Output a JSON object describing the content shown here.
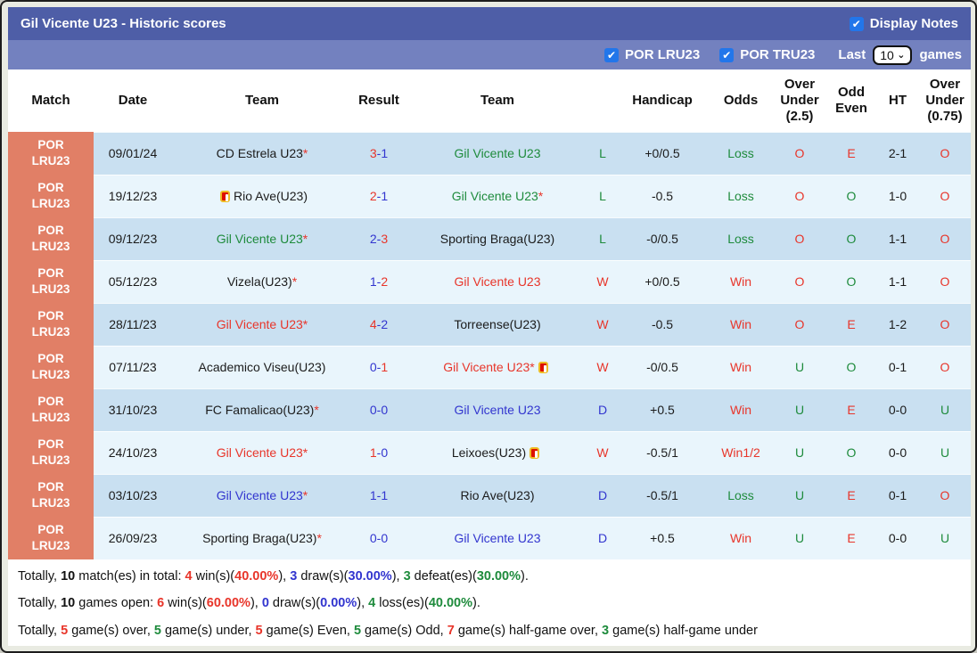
{
  "header": {
    "title": "Gil Vicente U23 - Historic scores",
    "display_notes_label": "Display Notes",
    "filters": [
      {
        "label": "POR LRU23",
        "checked": true
      },
      {
        "label": "POR TRU23",
        "checked": true
      }
    ],
    "last_label": "Last",
    "last_value": "10",
    "games_label": "games"
  },
  "colors": {
    "red": "#e8352a",
    "blue": "#3235cf",
    "green": "#1e8b3c",
    "black": "#1b1b1b"
  },
  "theme": {
    "title_bar": "#4e5ea7",
    "filter_bar": "#7381bf",
    "row_dark": "#c9e0f1",
    "row_light": "#e9f5fc",
    "match_column": "#e17f66",
    "frame_bg": "#e9ebe2"
  },
  "table": {
    "columns": [
      "Match",
      "Date",
      "Team",
      "Result",
      "Team",
      "",
      "Handicap",
      "Odds",
      "Over Under (2.5)",
      "Odd Even",
      "HT",
      "Over Under (0.75)"
    ],
    "rows": [
      {
        "match": "POR\nLRU23",
        "date": "09/01/24",
        "home": {
          "name": "CD Estrela U23",
          "star": true,
          "color": "black",
          "card": null
        },
        "result": {
          "h": "3",
          "hc": "red",
          "a": "1",
          "ac": "blue"
        },
        "away": {
          "name": "Gil Vicente U23",
          "star": false,
          "color": "green",
          "card": null
        },
        "wdl": {
          "t": "L",
          "c": "green"
        },
        "handicap": "+0/0.5",
        "odds": {
          "t": "Loss",
          "c": "green"
        },
        "ou25": {
          "t": "O",
          "c": "red"
        },
        "oe": {
          "t": "E",
          "c": "red"
        },
        "ht": "2-1",
        "ou075": {
          "t": "O",
          "c": "red"
        }
      },
      {
        "match": "POR\nLRU23",
        "date": "19/12/23",
        "home": {
          "name": "Rio Ave(U23)",
          "star": false,
          "color": "black",
          "card": "before"
        },
        "result": {
          "h": "2",
          "hc": "red",
          "a": "1",
          "ac": "blue"
        },
        "away": {
          "name": "Gil Vicente U23",
          "star": true,
          "color": "green",
          "card": null
        },
        "wdl": {
          "t": "L",
          "c": "green"
        },
        "handicap": "-0.5",
        "odds": {
          "t": "Loss",
          "c": "green"
        },
        "ou25": {
          "t": "O",
          "c": "red"
        },
        "oe": {
          "t": "O",
          "c": "green"
        },
        "ht": "1-0",
        "ou075": {
          "t": "O",
          "c": "red"
        }
      },
      {
        "match": "POR\nLRU23",
        "date": "09/12/23",
        "home": {
          "name": "Gil Vicente U23",
          "star": true,
          "color": "green",
          "card": null
        },
        "result": {
          "h": "2",
          "hc": "blue",
          "a": "3",
          "ac": "red"
        },
        "away": {
          "name": "Sporting Braga(U23)",
          "star": false,
          "color": "black",
          "card": null
        },
        "wdl": {
          "t": "L",
          "c": "green"
        },
        "handicap": "-0/0.5",
        "odds": {
          "t": "Loss",
          "c": "green"
        },
        "ou25": {
          "t": "O",
          "c": "red"
        },
        "oe": {
          "t": "O",
          "c": "green"
        },
        "ht": "1-1",
        "ou075": {
          "t": "O",
          "c": "red"
        }
      },
      {
        "match": "POR\nLRU23",
        "date": "05/12/23",
        "home": {
          "name": "Vizela(U23)",
          "star": true,
          "color": "black",
          "card": null
        },
        "result": {
          "h": "1",
          "hc": "blue",
          "a": "2",
          "ac": "red"
        },
        "away": {
          "name": "Gil Vicente U23",
          "star": false,
          "color": "red",
          "card": null
        },
        "wdl": {
          "t": "W",
          "c": "red"
        },
        "handicap": "+0/0.5",
        "odds": {
          "t": "Win",
          "c": "red"
        },
        "ou25": {
          "t": "O",
          "c": "red"
        },
        "oe": {
          "t": "O",
          "c": "green"
        },
        "ht": "1-1",
        "ou075": {
          "t": "O",
          "c": "red"
        }
      },
      {
        "match": "POR\nLRU23",
        "date": "28/11/23",
        "home": {
          "name": "Gil Vicente U23",
          "star": true,
          "color": "red",
          "card": null
        },
        "result": {
          "h": "4",
          "hc": "red",
          "a": "2",
          "ac": "blue"
        },
        "away": {
          "name": "Torreense(U23)",
          "star": false,
          "color": "black",
          "card": null
        },
        "wdl": {
          "t": "W",
          "c": "red"
        },
        "handicap": "-0.5",
        "odds": {
          "t": "Win",
          "c": "red"
        },
        "ou25": {
          "t": "O",
          "c": "red"
        },
        "oe": {
          "t": "E",
          "c": "red"
        },
        "ht": "1-2",
        "ou075": {
          "t": "O",
          "c": "red"
        }
      },
      {
        "match": "POR\nLRU23",
        "date": "07/11/23",
        "home": {
          "name": "Academico Viseu(U23)",
          "star": false,
          "color": "black",
          "card": null
        },
        "result": {
          "h": "0",
          "hc": "blue",
          "a": "1",
          "ac": "red"
        },
        "away": {
          "name": "Gil Vicente U23",
          "star": true,
          "color": "red",
          "card": "after"
        },
        "wdl": {
          "t": "W",
          "c": "red"
        },
        "handicap": "-0/0.5",
        "odds": {
          "t": "Win",
          "c": "red"
        },
        "ou25": {
          "t": "U",
          "c": "green"
        },
        "oe": {
          "t": "O",
          "c": "green"
        },
        "ht": "0-1",
        "ou075": {
          "t": "O",
          "c": "red"
        }
      },
      {
        "match": "POR\nLRU23",
        "date": "31/10/23",
        "home": {
          "name": "FC Famalicao(U23)",
          "star": true,
          "color": "black",
          "card": null
        },
        "result": {
          "h": "0",
          "hc": "blue",
          "a": "0",
          "ac": "blue"
        },
        "away": {
          "name": "Gil Vicente U23",
          "star": false,
          "color": "blue",
          "card": null
        },
        "wdl": {
          "t": "D",
          "c": "blue"
        },
        "handicap": "+0.5",
        "odds": {
          "t": "Win",
          "c": "red"
        },
        "ou25": {
          "t": "U",
          "c": "green"
        },
        "oe": {
          "t": "E",
          "c": "red"
        },
        "ht": "0-0",
        "ou075": {
          "t": "U",
          "c": "green"
        }
      },
      {
        "match": "POR\nLRU23",
        "date": "24/10/23",
        "home": {
          "name": "Gil Vicente U23",
          "star": true,
          "color": "red",
          "card": null
        },
        "result": {
          "h": "1",
          "hc": "red",
          "a": "0",
          "ac": "blue"
        },
        "away": {
          "name": "Leixoes(U23)",
          "star": false,
          "color": "black",
          "card": "after"
        },
        "wdl": {
          "t": "W",
          "c": "red"
        },
        "handicap": "-0.5/1",
        "odds": {
          "t": "Win1/2",
          "c": "red"
        },
        "ou25": {
          "t": "U",
          "c": "green"
        },
        "oe": {
          "t": "O",
          "c": "green"
        },
        "ht": "0-0",
        "ou075": {
          "t": "U",
          "c": "green"
        }
      },
      {
        "match": "POR\nLRU23",
        "date": "03/10/23",
        "home": {
          "name": "Gil Vicente U23",
          "star": true,
          "color": "blue",
          "card": null
        },
        "result": {
          "h": "1",
          "hc": "blue",
          "a": "1",
          "ac": "blue"
        },
        "away": {
          "name": "Rio Ave(U23)",
          "star": false,
          "color": "black",
          "card": null
        },
        "wdl": {
          "t": "D",
          "c": "blue"
        },
        "handicap": "-0.5/1",
        "odds": {
          "t": "Loss",
          "c": "green"
        },
        "ou25": {
          "t": "U",
          "c": "green"
        },
        "oe": {
          "t": "E",
          "c": "red"
        },
        "ht": "0-1",
        "ou075": {
          "t": "O",
          "c": "red"
        }
      },
      {
        "match": "POR\nLRU23",
        "date": "26/09/23",
        "home": {
          "name": "Sporting Braga(U23)",
          "star": true,
          "color": "black",
          "card": null
        },
        "result": {
          "h": "0",
          "hc": "blue",
          "a": "0",
          "ac": "blue"
        },
        "away": {
          "name": "Gil Vicente U23",
          "star": false,
          "color": "blue",
          "card": null
        },
        "wdl": {
          "t": "D",
          "c": "blue"
        },
        "handicap": "+0.5",
        "odds": {
          "t": "Win",
          "c": "red"
        },
        "ou25": {
          "t": "U",
          "c": "green"
        },
        "oe": {
          "t": "E",
          "c": "red"
        },
        "ht": "0-0",
        "ou075": {
          "t": "U",
          "c": "green"
        }
      }
    ]
  },
  "summary": [
    {
      "segments": [
        {
          "t": "Totally, "
        },
        {
          "t": "10",
          "b": true
        },
        {
          "t": " match(es) in total: "
        },
        {
          "t": "4",
          "c": "red",
          "b": true
        },
        {
          "t": " win(s)("
        },
        {
          "t": "40.00%",
          "c": "red",
          "b": true
        },
        {
          "t": "), "
        },
        {
          "t": "3",
          "c": "blue",
          "b": true
        },
        {
          "t": " draw(s)("
        },
        {
          "t": "30.00%",
          "c": "blue",
          "b": true
        },
        {
          "t": "), "
        },
        {
          "t": "3",
          "c": "green",
          "b": true
        },
        {
          "t": " defeat(es)("
        },
        {
          "t": "30.00%",
          "c": "green",
          "b": true
        },
        {
          "t": ")."
        }
      ]
    },
    {
      "segments": [
        {
          "t": "Totally, "
        },
        {
          "t": "10",
          "b": true
        },
        {
          "t": " games open: "
        },
        {
          "t": "6",
          "c": "red",
          "b": true
        },
        {
          "t": " win(s)("
        },
        {
          "t": "60.00%",
          "c": "red",
          "b": true
        },
        {
          "t": "), "
        },
        {
          "t": "0",
          "c": "blue",
          "b": true
        },
        {
          "t": " draw(s)("
        },
        {
          "t": "0.00%",
          "c": "blue",
          "b": true
        },
        {
          "t": "), "
        },
        {
          "t": "4",
          "c": "green",
          "b": true
        },
        {
          "t": " loss(es)("
        },
        {
          "t": "40.00%",
          "c": "green",
          "b": true
        },
        {
          "t": ")."
        }
      ]
    },
    {
      "segments": [
        {
          "t": "Totally, "
        },
        {
          "t": "5",
          "c": "red",
          "b": true
        },
        {
          "t": " game(s) over, "
        },
        {
          "t": "5",
          "c": "green",
          "b": true
        },
        {
          "t": " game(s) under, "
        },
        {
          "t": "5",
          "c": "red",
          "b": true
        },
        {
          "t": " game(s) Even, "
        },
        {
          "t": "5",
          "c": "green",
          "b": true
        },
        {
          "t": " game(s) Odd, "
        },
        {
          "t": "7",
          "c": "red",
          "b": true
        },
        {
          "t": " game(s) half-game over, "
        },
        {
          "t": "3",
          "c": "green",
          "b": true
        },
        {
          "t": " game(s) half-game under"
        }
      ]
    }
  ]
}
